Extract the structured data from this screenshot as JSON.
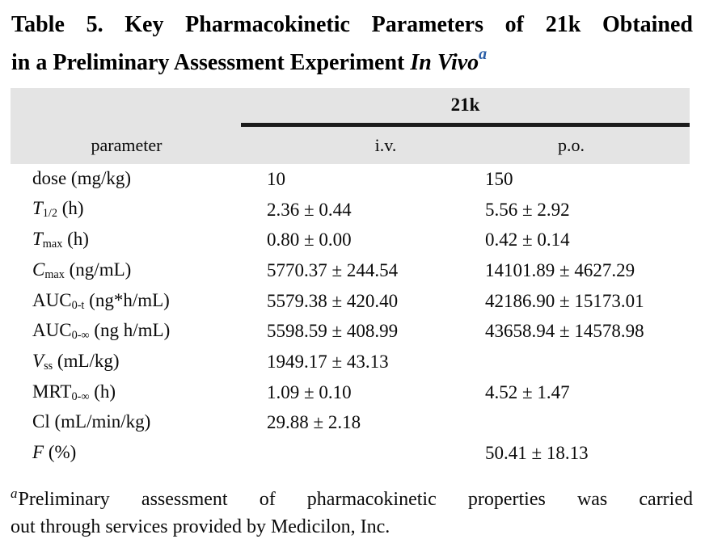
{
  "title": {
    "line1": "Table 5. Key Pharmacokinetic Parameters of 21k Obtained",
    "line2_plain": "in a Preliminary Assessment Experiment ",
    "line2_italic": "In Vivo",
    "superscript": "a"
  },
  "table": {
    "group_header": "21k",
    "columns": {
      "parameter": "parameter",
      "iv": "i.v.",
      "po": "p.o."
    },
    "rows": [
      {
        "head": "dose",
        "sub": "",
        "rest": " (mg/kg)",
        "iv": "10",
        "po": "150"
      },
      {
        "head": "T",
        "sub": "1/2",
        "rest": " (h)",
        "iv": "2.36 ± 0.44",
        "po": "5.56 ± 2.92"
      },
      {
        "head": "T",
        "sub": "max",
        "rest": " (h)",
        "iv": "0.80 ± 0.00",
        "po": "0.42 ± 0.14"
      },
      {
        "head": "C",
        "sub": "max",
        "rest": " (ng/mL)",
        "iv": "5770.37 ± 244.54",
        "po": "14101.89 ± 4627.29"
      },
      {
        "head": "AUC",
        "sub": "0-t",
        "rest": " (ng*h/mL)",
        "iv": "5579.38 ± 420.40",
        "po": "42186.90 ± 15173.01"
      },
      {
        "head": "AUC",
        "sub": "0-∞",
        "rest": " (ng h/mL)",
        "iv": "5598.59 ± 408.99",
        "po": "43658.94 ± 14578.98"
      },
      {
        "head": "V",
        "sub": "ss",
        "rest": " (mL/kg)",
        "iv": "1949.17 ± 43.13",
        "po": ""
      },
      {
        "head": "MRT",
        "sub": "0-∞",
        "rest": " (h)",
        "iv": "1.09 ± 0.10",
        "po": "4.52 ± 1.47"
      },
      {
        "head": "Cl",
        "sub": "",
        "rest": " (mL/min/kg)",
        "iv": "29.88 ± 2.18",
        "po": ""
      },
      {
        "head": "F",
        "sub": "",
        "rest": " (%)",
        "iv": "",
        "po": "50.41 ± 18.13"
      }
    ]
  },
  "footnote": {
    "marker": "a",
    "line1": "Preliminary assessment of pharmacokinetic properties was carried",
    "line2": "out through services provided by Medicilon, Inc."
  },
  "colors": {
    "header_band": "#e4e4e4",
    "spanner_rule": "#1b1b1b",
    "title_superscript": "#2c5fa7",
    "text": "#0a0a0a"
  }
}
